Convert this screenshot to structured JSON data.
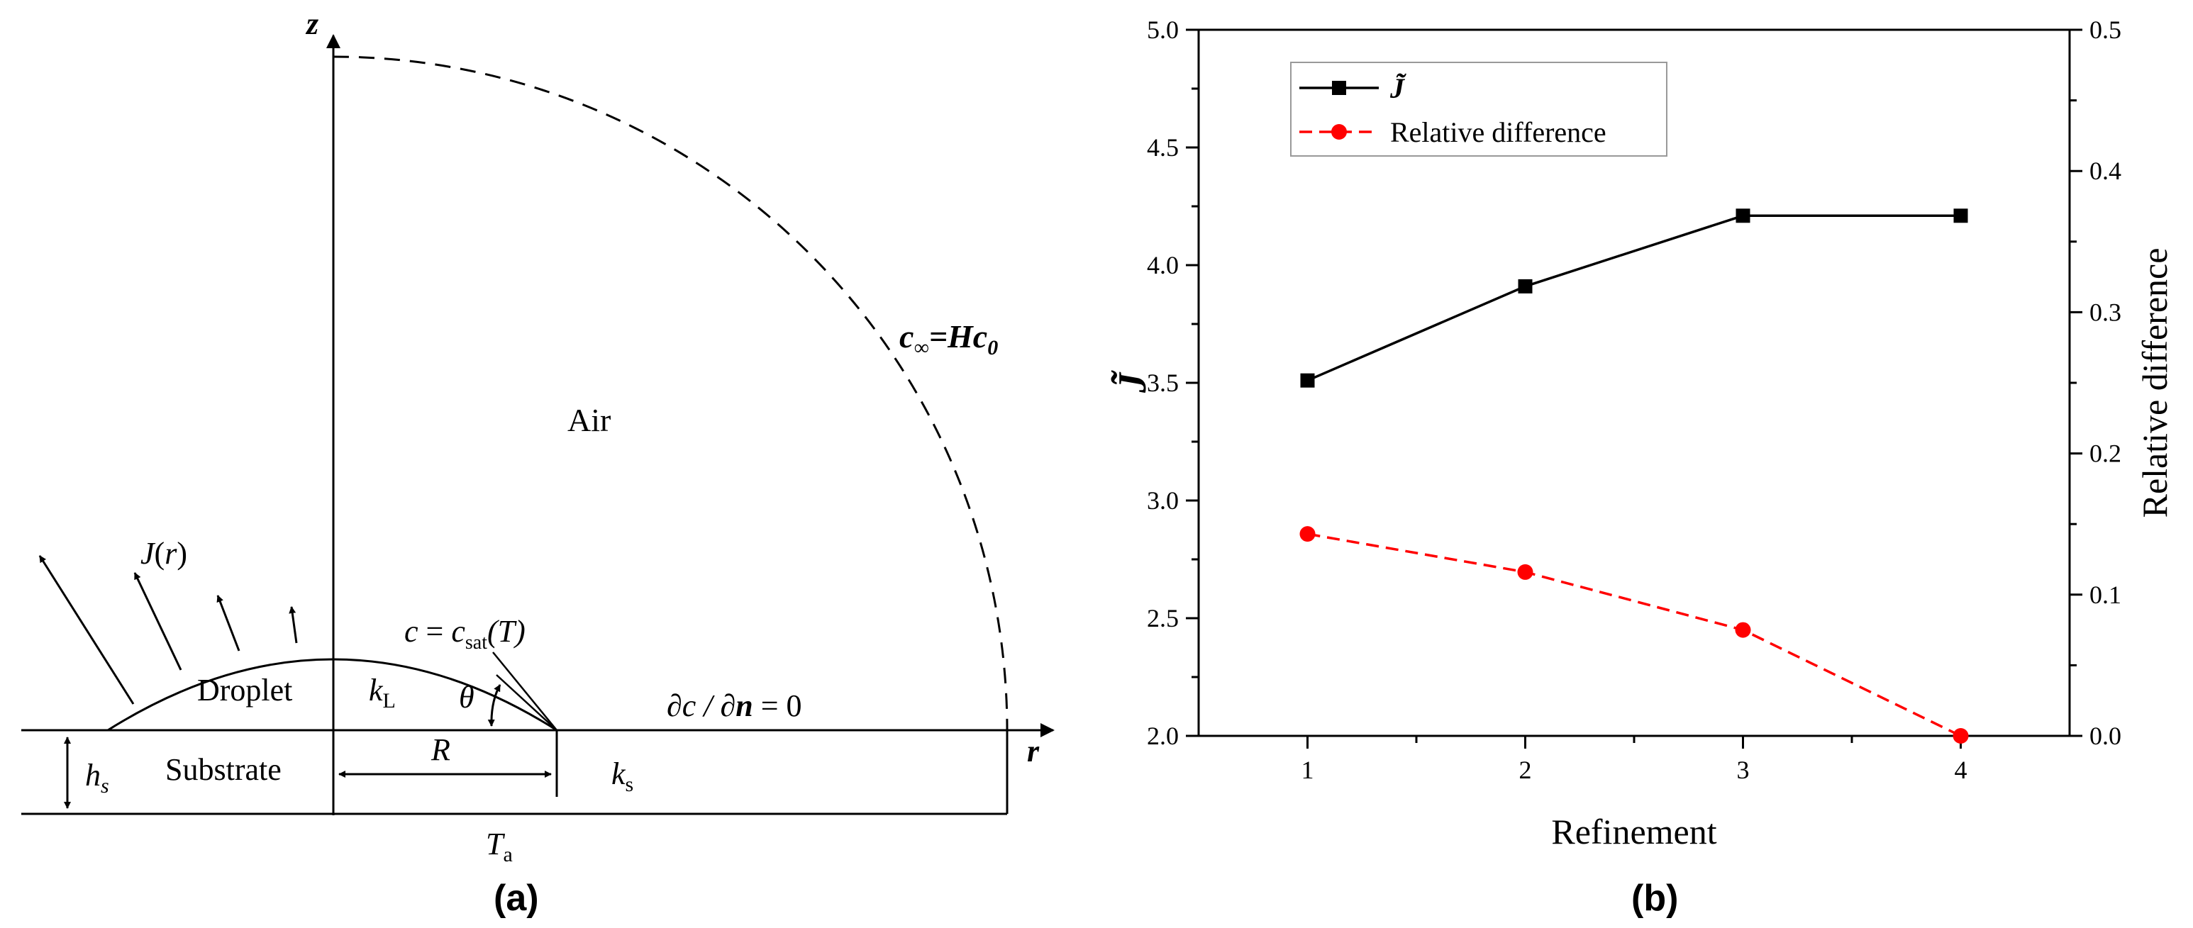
{
  "panel_a": {
    "axis_z": "z",
    "axis_r": "r",
    "far_field": {
      "c": "c",
      "inf": "∞",
      "eq": "=",
      "H": "Hc",
      "sub0": "0"
    },
    "air_label": "Air",
    "flux": {
      "J": "J",
      "open": "(",
      "r": "r",
      "close": ")"
    },
    "surface_bc": {
      "c": "c",
      "eq": " = ",
      "c2": "c",
      "sat": "sat",
      "T": "(T)"
    },
    "droplet_label": "Droplet",
    "kL": {
      "k": "k",
      "sub": "L"
    },
    "theta": "θ",
    "neumann_bc": {
      "lhs": "∂c / ∂",
      "n": "n",
      "rhs": " = 0"
    },
    "hs": {
      "h": "h",
      "sub": "s"
    },
    "substrate_label": "Substrate",
    "R_label": "R",
    "ks": {
      "k": "k",
      "sub": "s"
    },
    "Ta": {
      "T": "T",
      "sub": "a"
    },
    "caption": "(a)"
  },
  "panel_b": {
    "caption": "(b)",
    "chart_data": {
      "type": "line",
      "x": [
        1,
        2,
        3,
        4
      ],
      "xlabel": "Refinement",
      "xlim": [
        0.5,
        4.5
      ],
      "x_ticks": [
        "1",
        "2",
        "3",
        "4"
      ],
      "ylabel": "J̃",
      "ylim": [
        2.0,
        5.0
      ],
      "y_ticks": [
        "2.0",
        "2.5",
        "3.0",
        "3.5",
        "4.0",
        "4.5",
        "5.0"
      ],
      "y2label": "Relative difference",
      "y2lim": [
        0.0,
        0.5
      ],
      "y2_ticks": [
        "0.0",
        "0.1",
        "0.2",
        "0.3",
        "0.4",
        "0.5"
      ],
      "legend_position": "top-left",
      "series": [
        {
          "name": "J̃",
          "axis": "left",
          "values": [
            3.51,
            3.91,
            4.21,
            4.21
          ],
          "color": "#000000",
          "marker": "square",
          "line": "solid"
        },
        {
          "name": "Relative difference",
          "axis": "right",
          "values": [
            0.143,
            0.116,
            0.075,
            0.0
          ],
          "color": "#ff0000",
          "marker": "circle",
          "line": "dashed"
        }
      ]
    }
  }
}
